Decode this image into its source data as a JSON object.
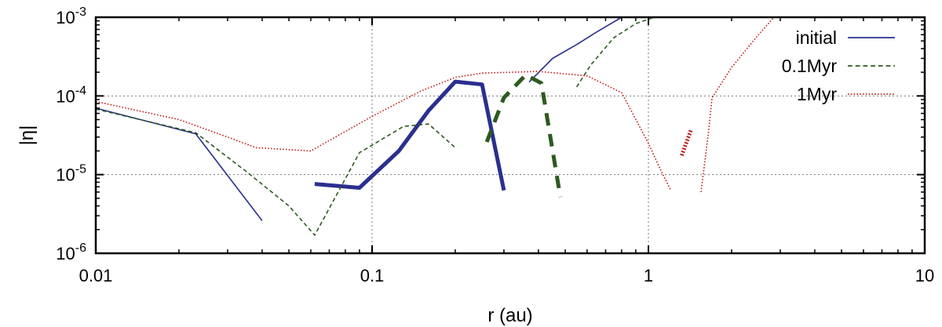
{
  "chart_data": {
    "type": "line",
    "title": "",
    "xlabel": "r (au)",
    "ylabel": "|η|",
    "xscale": "log",
    "yscale": "log",
    "xlim": [
      0.01,
      10
    ],
    "ylim": [
      1e-06,
      0.001
    ],
    "grid": true,
    "legend_position": "top-right",
    "x_ticks": [
      {
        "value": 0.01,
        "label": "0.01"
      },
      {
        "value": 0.1,
        "label": "0.1"
      },
      {
        "value": 1,
        "label": "1"
      },
      {
        "value": 10,
        "label": "10"
      }
    ],
    "y_ticks": [
      {
        "value": 1e-06,
        "base": "10",
        "exp": "-6"
      },
      {
        "value": 1e-05,
        "base": "10",
        "exp": "-5"
      },
      {
        "value": 0.0001,
        "base": "10",
        "exp": "-4"
      },
      {
        "value": 0.001,
        "base": "10",
        "exp": "-3"
      }
    ],
    "series": [
      {
        "name": "initial",
        "color": "#2a2f8f",
        "dash": "solid",
        "segments": [
          {
            "weight": "thin",
            "points": [
              [
                0.01,
                7e-05
              ],
              [
                0.023,
                3.3e-05
              ],
              [
                0.04,
                2.6e-06
              ]
            ]
          },
          {
            "weight": "thick",
            "points": [
              [
                0.062,
                7.6e-06
              ],
              [
                0.09,
                6.8e-06
              ],
              [
                0.125,
                2e-05
              ],
              [
                0.16,
                6.5e-05
              ],
              [
                0.2,
                0.000152
              ],
              [
                0.25,
                0.00014
              ],
              [
                0.3,
                6.3e-06
              ]
            ]
          },
          {
            "weight": "thin",
            "points": [
              [
                0.37,
                0.00015
              ],
              [
                0.45,
                0.0003
              ],
              [
                0.55,
                0.00045
              ],
              [
                0.65,
                0.00065
              ],
              [
                0.8,
                0.001
              ]
            ]
          }
        ]
      },
      {
        "name": "0.1Myr",
        "color": "#2d5a1f",
        "dash": "dashed",
        "segments": [
          {
            "weight": "thin",
            "points": [
              [
                0.01,
                6.8e-05
              ],
              [
                0.023,
                3.4e-05
              ],
              [
                0.035,
                1.1e-05
              ],
              [
                0.05,
                4e-06
              ],
              [
                0.062,
                1.7e-06
              ],
              [
                0.09,
                1.9e-05
              ],
              [
                0.13,
                4.1e-05
              ],
              [
                0.16,
                4.4e-05
              ],
              [
                0.2,
                2.2e-05
              ]
            ]
          },
          {
            "weight": "thick",
            "points": [
              [
                0.26,
                2.6e-05
              ],
              [
                0.3,
                9.5e-05
              ],
              [
                0.36,
                0.000185
              ],
              [
                0.41,
                0.000145
              ],
              [
                0.48,
                5.2e-06
              ]
            ]
          },
          {
            "weight": "thin",
            "points": [
              [
                0.55,
                0.00013
              ],
              [
                0.62,
                0.00025
              ],
              [
                0.75,
                0.00055
              ],
              [
                0.9,
                0.00083
              ],
              [
                1.05,
                0.001
              ]
            ]
          }
        ]
      },
      {
        "name": "1Myr",
        "color": "#c0201f",
        "dash": "dotted",
        "segments": [
          {
            "weight": "thin",
            "points": [
              [
                0.01,
                8.5e-05
              ],
              [
                0.02,
                5e-05
              ],
              [
                0.03,
                3e-05
              ],
              [
                0.038,
                2.2e-05
              ],
              [
                0.06,
                2e-05
              ],
              [
                0.1,
                5.5e-05
              ],
              [
                0.15,
                0.000115
              ],
              [
                0.2,
                0.000172
              ],
              [
                0.25,
                0.000195
              ],
              [
                0.4,
                0.000205
              ],
              [
                0.6,
                0.00018
              ],
              [
                0.8,
                0.00011
              ],
              [
                1.0,
                2.5e-05
              ],
              [
                1.1,
                1.2e-05
              ],
              [
                1.2,
                6.5e-06
              ]
            ]
          },
          {
            "weight": "thick",
            "points": [
              [
                1.32,
                1.75e-05
              ],
              [
                1.43,
                3.8e-05
              ]
            ]
          },
          {
            "weight": "thin",
            "points": [
              [
                1.55,
                6e-06
              ],
              [
                1.65,
                3.5e-05
              ],
              [
                1.7,
                9.5e-05
              ],
              [
                2.0,
                0.00023
              ],
              [
                2.5,
                0.0006
              ],
              [
                2.85,
                0.001
              ]
            ]
          }
        ]
      }
    ]
  }
}
